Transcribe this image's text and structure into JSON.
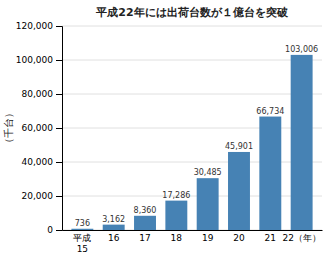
{
  "chart_data": {
    "type": "bar",
    "title": "平成22年には出荷台数が１億台を突破",
    "ylabel": "（千台）",
    "categories": [
      "平成\n15",
      "16",
      "17",
      "18",
      "19",
      "20",
      "21",
      "22（年）"
    ],
    "values": [
      736,
      3162,
      8360,
      17286,
      30485,
      45901,
      66734,
      103006
    ],
    "value_labels": [
      "736",
      "3,162",
      "8,360",
      "17,286",
      "30,485",
      "45,901",
      "66,734",
      "103,006"
    ],
    "data_labels": true,
    "ylim": [
      0,
      120000
    ],
    "yticks": [
      0,
      {
        "value": 20000,
        "label": "20,000"
      },
      {
        "value": 40000,
        "label": "40,000"
      },
      {
        "value": 60000,
        "label": "60,000"
      },
      {
        "value": 80000,
        "label": "80,000"
      },
      {
        "value": 100000,
        "label": "100,000"
      },
      {
        "value": 120000,
        "label": "120,000"
      }
    ],
    "grid": true
  }
}
